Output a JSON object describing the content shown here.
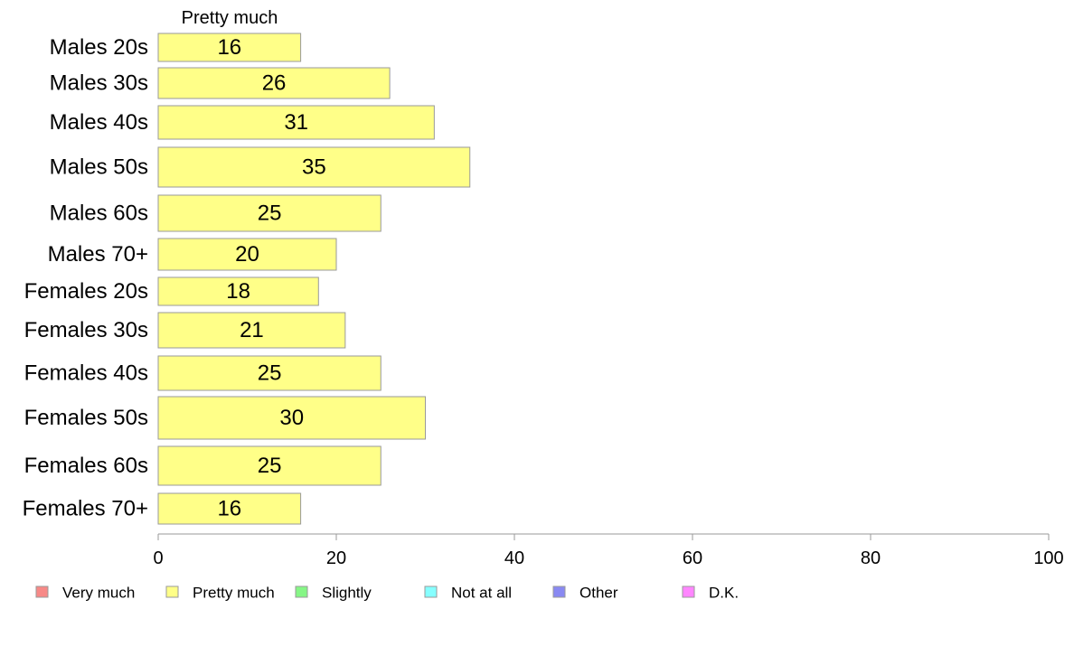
{
  "chart_data": {
    "type": "bar",
    "orientation": "horizontal",
    "stacked": true,
    "categories": [
      "Males 20s",
      "Males 30s",
      "Males 40s",
      "Males 50s",
      "Males 60s",
      "Males 70+",
      "Females 20s",
      "Females 30s",
      "Females 40s",
      "Females 50s",
      "Females 60s",
      "Females 70+"
    ],
    "series": [
      {
        "name": "Pretty much",
        "color": "#ffff88",
        "values": [
          16,
          26,
          31,
          35,
          25,
          20,
          18,
          21,
          25,
          30,
          25,
          16
        ]
      }
    ],
    "column_header": "Pretty much",
    "xlim": [
      0,
      100
    ],
    "xticks": [
      0,
      20,
      40,
      60,
      80,
      100
    ],
    "legend": [
      {
        "name": "Very much",
        "color": "#f78987"
      },
      {
        "name": "Pretty much",
        "color": "#ffff88"
      },
      {
        "name": "Slightly",
        "color": "#86f686"
      },
      {
        "name": "Not at all",
        "color": "#86ffff"
      },
      {
        "name": "Other",
        "color": "#8989f2"
      },
      {
        "name": "D.K.",
        "color": "#ff86ff"
      }
    ],
    "legend_position": "bottom",
    "grid": false
  }
}
